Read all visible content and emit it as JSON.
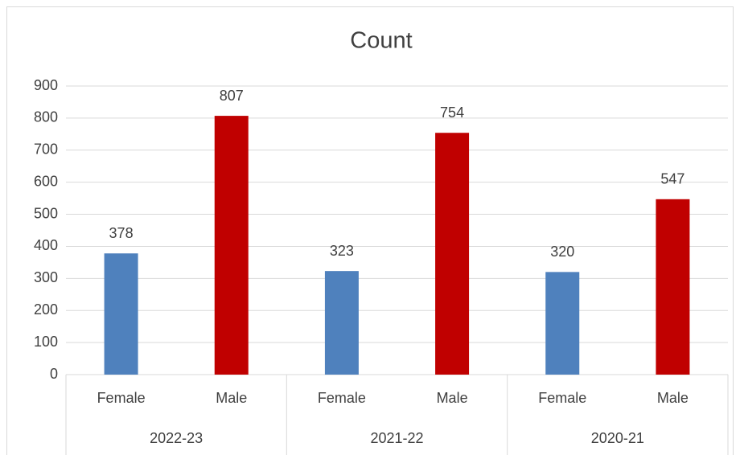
{
  "chart_data": {
    "type": "bar",
    "title": "Count",
    "categories": [
      "Female",
      "Male",
      "Female",
      "Male",
      "Female",
      "Male"
    ],
    "groups": [
      "2022-23",
      "2021-22",
      "2020-21"
    ],
    "values": [
      378,
      807,
      323,
      754,
      320,
      547
    ],
    "colors": [
      "#4f81bd",
      "#c00000",
      "#4f81bd",
      "#c00000",
      "#4f81bd",
      "#c00000"
    ],
    "ylim": [
      0,
      900
    ],
    "yticks": [
      0,
      100,
      200,
      300,
      400,
      500,
      600,
      700,
      800,
      900
    ],
    "grid": true
  }
}
